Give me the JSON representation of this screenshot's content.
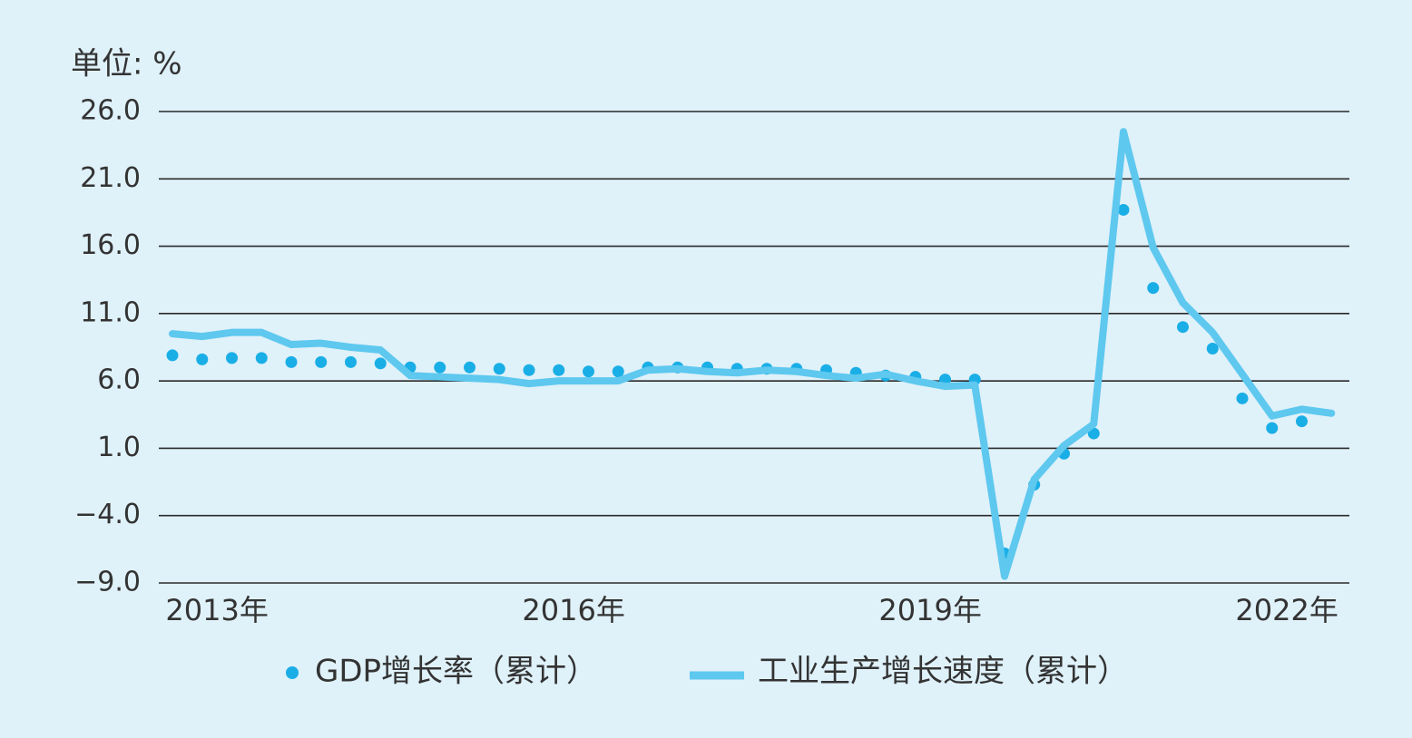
{
  "chart_data": {
    "type": "line",
    "unit_label": "单位: %",
    "categories": [
      null,
      "2013年",
      null,
      null,
      null,
      null,
      null,
      null,
      null,
      null,
      null,
      null,
      null,
      "2016年",
      null,
      null,
      null,
      null,
      null,
      null,
      null,
      null,
      null,
      null,
      null,
      "2019年",
      null,
      null,
      null,
      null,
      null,
      null,
      null,
      null,
      null,
      null,
      null,
      "2022年",
      null,
      null
    ],
    "series": [
      {
        "name": "GDP增长率（累计）",
        "style": "dots",
        "color": "#1aaee6",
        "values": [
          7.9,
          7.6,
          7.7,
          7.7,
          7.4,
          7.4,
          7.4,
          7.3,
          7.0,
          7.0,
          7.0,
          6.9,
          6.8,
          6.8,
          6.7,
          6.7,
          7.0,
          7.0,
          7.0,
          6.9,
          6.9,
          6.9,
          6.8,
          6.6,
          6.4,
          6.3,
          6.1,
          6.1,
          -6.8,
          -1.7,
          0.6,
          2.1,
          18.7,
          12.9,
          10.0,
          8.4,
          4.7,
          2.5,
          3.0,
          null
        ]
      },
      {
        "name": "工业生产增长速度（累计）",
        "style": "line",
        "color": "#5ec8ef",
        "values": [
          9.5,
          9.3,
          9.6,
          9.6,
          8.7,
          8.8,
          8.5,
          8.3,
          6.4,
          6.3,
          6.2,
          6.1,
          5.8,
          6.0,
          6.0,
          6.0,
          6.8,
          6.9,
          6.7,
          6.6,
          6.8,
          6.7,
          6.4,
          6.2,
          6.5,
          6.0,
          5.6,
          5.7,
          -8.5,
          -1.3,
          1.2,
          2.8,
          24.5,
          15.9,
          11.8,
          9.6,
          6.5,
          3.4,
          3.9,
          3.6
        ]
      }
    ],
    "ylim": [
      -9,
      26
    ],
    "yticks": [
      {
        "value": 26,
        "label": "26.0"
      },
      {
        "value": 21,
        "label": "21.0"
      },
      {
        "value": 16,
        "label": "16.0"
      },
      {
        "value": 11,
        "label": "11.0"
      },
      {
        "value": 6,
        "label": "6.0"
      },
      {
        "value": 1,
        "label": "1.0"
      },
      {
        "value": -4,
        "label": "−4.0"
      },
      {
        "value": -9,
        "label": "−9.0"
      }
    ],
    "grid": true
  }
}
